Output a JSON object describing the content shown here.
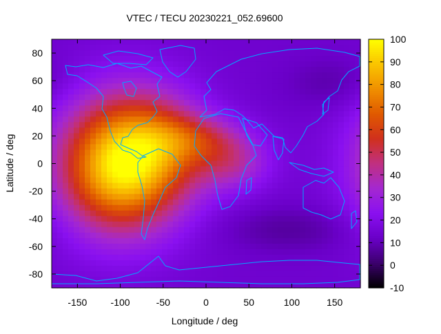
{
  "chart_data": {
    "type": "heatmap",
    "title": "VTEC / TECU 20230221_052.69600",
    "xlabel": "Longitude / deg",
    "ylabel": "Latitude / deg",
    "xlim": [
      -180,
      180
    ],
    "ylim": [
      -90,
      90
    ],
    "x_ticks": [
      -150,
      -100,
      -50,
      0,
      50,
      100,
      150
    ],
    "y_ticks": [
      -80,
      -60,
      -40,
      -20,
      0,
      20,
      40,
      60,
      80
    ],
    "colorbar": {
      "min": -10,
      "max": 100,
      "ticks": [
        -10,
        0,
        10,
        20,
        30,
        40,
        50,
        60,
        70,
        80,
        90,
        100
      ],
      "palette": [
        "#000000",
        "#3c006e",
        "#6a00c8",
        "#8a10f0",
        "#a428d0",
        "#c03080",
        "#d0301c",
        "#e05a00",
        "#f09000",
        "#fac400",
        "#ffff00"
      ]
    },
    "background_tecu": 14,
    "blobs": [
      {
        "lon": -98,
        "lat": 0,
        "slon": 52,
        "slat": 34,
        "amp": 70
      },
      {
        "lon": -55,
        "lat": 12,
        "slon": 40,
        "slat": 26,
        "amp": 22
      },
      {
        "lon": -8,
        "lat": 18,
        "slon": 38,
        "slat": 12,
        "amp": 22
      },
      {
        "lon": 30,
        "lat": 0,
        "slon": 32,
        "slat": 14,
        "amp": 22
      },
      {
        "lon": -110,
        "lat": -10,
        "slon": 35,
        "slat": 25,
        "amp": 10
      },
      {
        "lon": 100,
        "lat": -48,
        "slon": 60,
        "slat": 12,
        "amp": -7
      },
      {
        "lon": 150,
        "lat": 58,
        "slon": 40,
        "slat": 14,
        "amp": -6
      }
    ],
    "coastline_color": "#00aaff"
  }
}
